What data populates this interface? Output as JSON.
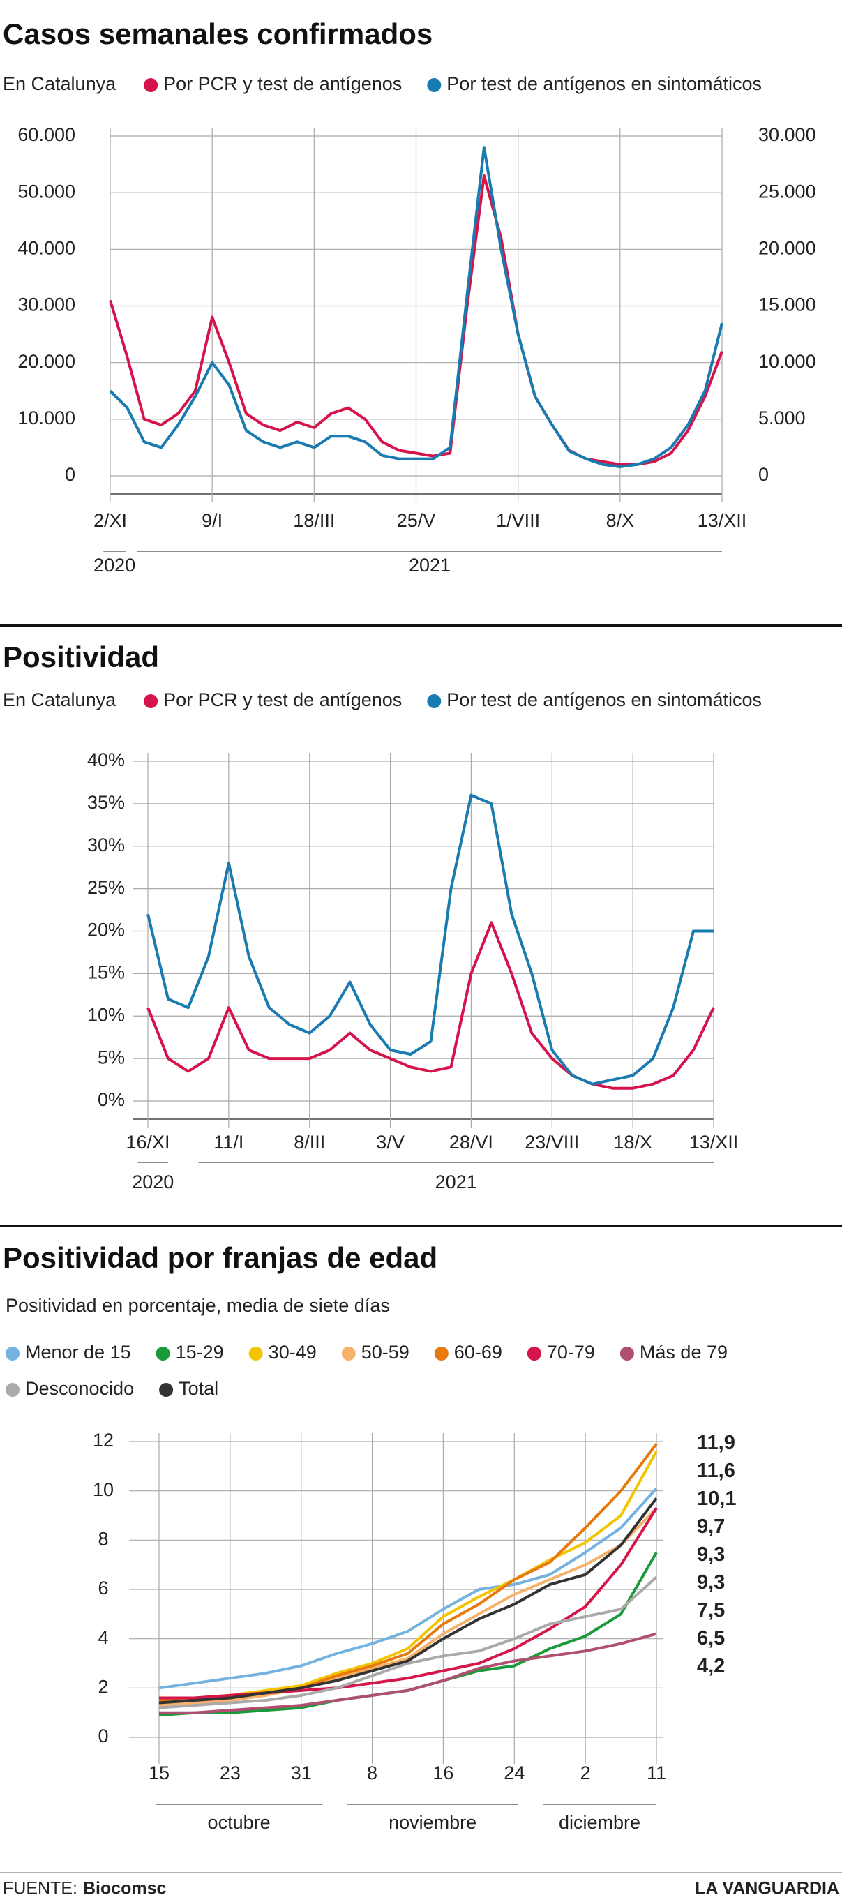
{
  "chart_data": [
    {
      "type": "line",
      "title": "Casos semanales confirmados",
      "subtitle": "En Catalunya",
      "categories": [
        "2/XI",
        null,
        null,
        null,
        null,
        null,
        "9/I",
        null,
        null,
        null,
        null,
        null,
        "18/III",
        null,
        null,
        null,
        null,
        null,
        "25/V",
        null,
        null,
        null,
        null,
        null,
        "1/VIII",
        null,
        null,
        null,
        null,
        null,
        "8/X",
        null,
        null,
        null,
        null,
        null,
        "13/XII"
      ],
      "group_labels": [
        "2020",
        "2021"
      ],
      "series": [
        {
          "name": "Por PCR y test de antígenos",
          "color": "#d6144c",
          "values": [
            31000,
            21000,
            10000,
            9000,
            11000,
            15000,
            28000,
            20000,
            11000,
            9000,
            8000,
            9500,
            8500,
            11000,
            12000,
            10000,
            6000,
            4500,
            4000,
            3500,
            4000,
            30000,
            53000,
            42000,
            25000,
            14000,
            9000,
            4500,
            3000,
            2500,
            2000,
            2000,
            2500,
            4000,
            8000,
            14000,
            22000
          ]
        },
        {
          "name": "Por test de antígenos en sintomáticos",
          "color": "#1a7bb0",
          "axis": "y2",
          "values": [
            7500,
            6000,
            3000,
            2500,
            4500,
            7000,
            10000,
            8000,
            4000,
            3000,
            2500,
            3000,
            2500,
            3500,
            3500,
            3000,
            1800,
            1500,
            1500,
            1500,
            2500,
            16000,
            29000,
            20000,
            12500,
            7000,
            4500,
            2200,
            1500,
            1000,
            800,
            1000,
            1500,
            2500,
            4500,
            7500,
            13500
          ]
        }
      ],
      "ylim": [
        0,
        60000
      ],
      "yticks": [
        0,
        {
          "value": 10000,
          "label": "10.000"
        },
        {
          "value": 20000,
          "label": "20.000"
        },
        {
          "value": 30000,
          "label": "30.000"
        },
        {
          "value": 40000,
          "label": "40.000"
        },
        {
          "value": 50000,
          "label": "50.000"
        },
        {
          "value": 60000,
          "label": "60.000"
        }
      ],
      "y2lim": [
        0,
        30000
      ],
      "y2ticks": [
        0,
        {
          "value": 5000,
          "label": "5.000"
        },
        {
          "value": 10000,
          "label": "10.000"
        },
        {
          "value": 15000,
          "label": "15.000"
        },
        {
          "value": 20000,
          "label": "20.000"
        },
        {
          "value": 25000,
          "label": "25.000"
        },
        {
          "value": 30000,
          "label": "30.000"
        }
      ],
      "grid": true
    },
    {
      "type": "line",
      "title": "Positividad",
      "subtitle": "En Catalunya",
      "categories": [
        "16/XI",
        null,
        null,
        null,
        "11/I",
        null,
        null,
        null,
        "8/III",
        null,
        null,
        null,
        "3/V",
        null,
        null,
        null,
        "28/VI",
        null,
        null,
        null,
        "23/VIII",
        null,
        null,
        null,
        "18/X",
        null,
        null,
        null,
        "13/XII"
      ],
      "group_labels": [
        "2020",
        "2021"
      ],
      "series": [
        {
          "name": "Por PCR y test de antígenos",
          "color": "#d6144c",
          "values": [
            11,
            5,
            3.5,
            5,
            11,
            6,
            5,
            5,
            5,
            6,
            8,
            6,
            5,
            4,
            3.5,
            4,
            15,
            21,
            15,
            8,
            5,
            3,
            2,
            1.5,
            1.5,
            2,
            3,
            6,
            11
          ]
        },
        {
          "name": "Por test de antígenos en sintomáticos",
          "color": "#1a7bb0",
          "values": [
            22,
            12,
            11,
            17,
            28,
            17,
            11,
            9,
            8,
            10,
            14,
            9,
            6,
            5.5,
            7,
            25,
            36,
            35,
            22,
            15,
            6,
            3,
            2,
            2.5,
            3,
            5,
            11,
            20,
            20
          ]
        }
      ],
      "ylim": [
        0,
        40
      ],
      "yticks": [
        {
          "value": 0,
          "label": "0%"
        },
        {
          "value": 5,
          "label": "5%"
        },
        {
          "value": 10,
          "label": "10%"
        },
        {
          "value": 15,
          "label": "15%"
        },
        {
          "value": 20,
          "label": "20%"
        },
        {
          "value": 25,
          "label": "25%"
        },
        {
          "value": 30,
          "label": "30%"
        },
        {
          "value": 35,
          "label": "35%"
        },
        {
          "value": 40,
          "label": "40%"
        }
      ],
      "grid": true
    },
    {
      "type": "line",
      "title": "Positividad por franjas de edad",
      "subtitle": "Positividad en porcentaje, media de siete días",
      "categories": [
        "15",
        null,
        "23",
        null,
        "31",
        null,
        "8",
        null,
        "16",
        null,
        "24",
        null,
        "2",
        null,
        "11"
      ],
      "group_labels": [
        "octubre",
        "noviembre",
        "diciembre"
      ],
      "series": [
        {
          "name": "Menor de 15",
          "color": "#74b3e0",
          "values": [
            2.0,
            2.2,
            2.4,
            2.6,
            2.9,
            3.4,
            3.8,
            4.3,
            5.2,
            6.0,
            6.2,
            6.6,
            7.5,
            8.5,
            10.1
          ],
          "value_labels": [
            null,
            null,
            null,
            null,
            null,
            null,
            null,
            null,
            null,
            null,
            null,
            null,
            null,
            null,
            "10,1"
          ]
        },
        {
          "name": "15-29",
          "color": "#1a9a3a",
          "values": [
            0.9,
            1.0,
            1.0,
            1.1,
            1.2,
            1.5,
            1.7,
            1.9,
            2.3,
            2.7,
            2.9,
            3.6,
            4.1,
            5.0,
            7.5
          ],
          "value_labels": [
            null,
            null,
            null,
            null,
            null,
            null,
            null,
            null,
            null,
            null,
            null,
            null,
            null,
            null,
            "7,5"
          ]
        },
        {
          "name": "30-49",
          "color": "#f2c500",
          "values": [
            1.4,
            1.6,
            1.7,
            1.9,
            2.1,
            2.6,
            3.0,
            3.6,
            4.9,
            5.7,
            6.4,
            7.2,
            7.9,
            9.0,
            11.6
          ],
          "value_labels": [
            null,
            null,
            null,
            null,
            null,
            null,
            null,
            null,
            null,
            null,
            null,
            null,
            null,
            null,
            "11,6"
          ]
        },
        {
          "name": "50-59",
          "color": "#f6b26b",
          "values": [
            1.3,
            1.4,
            1.5,
            1.7,
            2.0,
            2.4,
            2.8,
            3.2,
            4.2,
            5.0,
            5.8,
            6.4,
            7.0,
            7.8,
            9.3
          ],
          "value_labels": [
            null,
            null,
            null,
            null,
            null,
            null,
            null,
            null,
            null,
            null,
            null,
            null,
            null,
            null,
            "9,3"
          ]
        },
        {
          "name": "60-69",
          "color": "#e8790c",
          "values": [
            1.5,
            1.6,
            1.7,
            1.8,
            2.0,
            2.5,
            2.9,
            3.4,
            4.6,
            5.4,
            6.4,
            7.1,
            8.5,
            10.0,
            11.9
          ],
          "value_labels": [
            null,
            null,
            null,
            null,
            null,
            null,
            null,
            null,
            null,
            null,
            null,
            null,
            null,
            null,
            "11,9"
          ]
        },
        {
          "name": "70-79",
          "color": "#d6154a",
          "values": [
            1.6,
            1.6,
            1.7,
            1.8,
            1.9,
            2.0,
            2.2,
            2.4,
            2.7,
            3.0,
            3.6,
            4.4,
            5.3,
            7.0,
            9.3
          ],
          "value_labels": [
            null,
            null,
            null,
            null,
            null,
            null,
            null,
            null,
            null,
            null,
            null,
            null,
            null,
            null,
            "9,3"
          ]
        },
        {
          "name": "Más de 79",
          "color": "#b05070",
          "values": [
            1.0,
            1.0,
            1.1,
            1.2,
            1.3,
            1.5,
            1.7,
            1.9,
            2.3,
            2.8,
            3.1,
            3.3,
            3.5,
            3.8,
            4.2
          ],
          "value_labels": [
            null,
            null,
            null,
            null,
            null,
            null,
            null,
            null,
            null,
            null,
            null,
            null,
            null,
            null,
            "4,2"
          ]
        },
        {
          "name": "Desconocido",
          "color": "#aaaaaa",
          "values": [
            1.2,
            1.3,
            1.4,
            1.5,
            1.7,
            2.0,
            2.5,
            3.0,
            3.3,
            3.5,
            4.0,
            4.6,
            4.9,
            5.2,
            6.5
          ],
          "value_labels": [
            null,
            null,
            null,
            null,
            null,
            null,
            null,
            null,
            null,
            null,
            null,
            null,
            null,
            null,
            "6,5"
          ]
        },
        {
          "name": "Total",
          "color": "#333333",
          "values": [
            1.4,
            1.5,
            1.6,
            1.8,
            2.0,
            2.3,
            2.7,
            3.1,
            4.0,
            4.8,
            5.4,
            6.2,
            6.6,
            7.8,
            9.7
          ],
          "value_labels": [
            null,
            null,
            null,
            null,
            null,
            null,
            null,
            null,
            null,
            null,
            null,
            null,
            null,
            null,
            "9,7"
          ]
        }
      ],
      "ylim": [
        0,
        12
      ],
      "yticks": [
        0,
        2,
        4,
        6,
        8,
        10,
        12
      ],
      "grid": true
    }
  ],
  "footer": {
    "source_label": "FUENTE:",
    "source": "Biocomsc",
    "brand": "LA VANGUARDIA"
  }
}
